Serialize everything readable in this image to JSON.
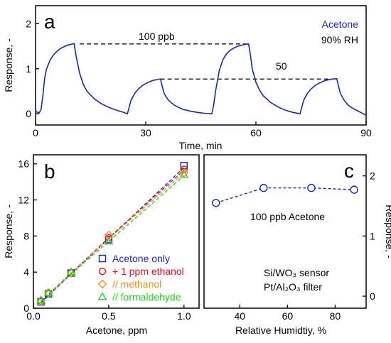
{
  "chart_data": [
    {
      "panel_label": "a",
      "type": "line",
      "xlabel": "Time, min",
      "ylabel": "Response, -",
      "xlim": [
        0,
        90
      ],
      "ylim": [
        -0.25,
        2.4
      ],
      "xticks": [
        "0",
        "30",
        "60",
        "90"
      ],
      "xtick_values": [
        0,
        30,
        60,
        90
      ],
      "yticks": [
        "0",
        "1",
        "2"
      ],
      "ytick_values": [
        0,
        1,
        2
      ],
      "annotations": [
        "Acetone",
        "90% RH",
        "100  ppb",
        "50"
      ],
      "reference_levels": [
        {
          "label": "100  ppb",
          "y": 1.55,
          "x_range": [
            12,
            58
          ]
        },
        {
          "label": "50",
          "y": 0.77,
          "x_range": [
            34,
            82
          ]
        }
      ],
      "series": [
        {
          "color": "#1a22d6",
          "x": [
            0,
            1,
            1.5,
            2,
            2.5,
            3,
            4,
            5,
            6,
            7,
            8,
            9,
            10,
            10.5,
            11,
            12,
            13,
            14,
            16,
            18,
            20,
            22,
            24,
            25,
            25.5,
            26,
            27,
            28,
            29,
            30,
            31,
            32,
            33,
            34,
            34.5,
            35,
            36,
            37,
            38,
            40,
            42,
            44,
            46,
            48,
            48.5,
            49,
            50,
            51,
            52,
            53,
            54,
            55,
            56,
            57,
            58,
            58.5,
            59,
            60,
            61,
            62,
            64,
            66,
            68,
            70,
            72,
            72.5,
            73,
            74,
            75,
            76,
            77,
            78,
            79,
            80,
            81,
            82,
            82.5,
            83,
            84,
            85,
            86,
            88,
            90
          ],
          "y": [
            0.05,
            0.02,
            0.1,
            0.4,
            0.8,
            1.0,
            1.2,
            1.32,
            1.4,
            1.46,
            1.5,
            1.53,
            1.55,
            1.56,
            1.3,
            0.9,
            0.65,
            0.5,
            0.33,
            0.22,
            0.14,
            0.08,
            0.03,
            0.0,
            0.15,
            0.3,
            0.45,
            0.55,
            0.62,
            0.67,
            0.71,
            0.74,
            0.76,
            0.77,
            0.6,
            0.45,
            0.32,
            0.24,
            0.18,
            0.1,
            0.06,
            0.03,
            0.01,
            0.0,
            0.2,
            0.5,
            0.95,
            1.2,
            1.33,
            1.41,
            1.46,
            1.5,
            1.52,
            1.54,
            1.55,
            1.3,
            1.0,
            0.7,
            0.52,
            0.4,
            0.25,
            0.15,
            0.08,
            0.03,
            0.0,
            0.15,
            0.3,
            0.45,
            0.55,
            0.62,
            0.67,
            0.71,
            0.74,
            0.76,
            0.77,
            0.78,
            0.6,
            0.45,
            0.3,
            0.2,
            0.14,
            0.05,
            -0.03
          ]
        }
      ]
    },
    {
      "panel_label": "b",
      "type": "scatter",
      "xlabel": "Acetone, ppm",
      "ylabel": "Response, -",
      "xlim": [
        0,
        1.1
      ],
      "ylim": [
        0,
        17
      ],
      "xticks": [
        "0.0",
        "0.5",
        "1.0"
      ],
      "xtick_values": [
        0,
        0.5,
        1.0
      ],
      "yticks": [
        "0",
        "4",
        "8",
        "12",
        "16"
      ],
      "ytick_values": [
        0,
        4,
        8,
        12,
        16
      ],
      "legend_position": "bottom-right",
      "series": [
        {
          "name": "Acetone only",
          "marker": "square",
          "color": "#1a22d6",
          "x": [
            0.05,
            0.1,
            0.25,
            0.5,
            1.0
          ],
          "y": [
            0.7,
            1.6,
            3.9,
            7.6,
            15.8
          ],
          "fit_y": [
            0.6,
            1.4,
            3.8,
            7.7,
            15.6
          ]
        },
        {
          "name": "+ 1 ppm ethanol",
          "marker": "circle",
          "color": "#e8111b",
          "x": [
            0.05,
            0.1,
            0.25,
            0.5,
            1.0
          ],
          "y": [
            0.8,
            1.7,
            3.9,
            7.8,
            15.4
          ],
          "fit_y": [
            0.7,
            1.5,
            3.9,
            7.8,
            15.3
          ]
        },
        {
          "name": "// methanol",
          "marker": "diamond",
          "color": "#f2921a",
          "x": [
            0.05,
            0.1,
            0.25,
            0.5,
            1.0
          ],
          "y": [
            0.8,
            1.7,
            3.9,
            8.1,
            15.0
          ],
          "fit_y": [
            0.8,
            1.6,
            3.9,
            7.7,
            15.0
          ]
        },
        {
          "name": "// formaldehyde",
          "marker": "triangle",
          "color": "#22d622",
          "x": [
            0.05,
            0.1,
            0.25,
            0.5,
            1.0
          ],
          "y": [
            0.9,
            1.7,
            4.0,
            7.4,
            14.8
          ],
          "fit_y": [
            0.8,
            1.5,
            3.8,
            7.4,
            14.7
          ]
        }
      ]
    },
    {
      "panel_label": "c",
      "type": "scatter",
      "xlabel": "Relative Humidtiy, %",
      "ylabel": "Response, -",
      "xlim": [
        25,
        93
      ],
      "ylim": [
        -0.2,
        2.35
      ],
      "xticks": [
        "40",
        "60",
        "80"
      ],
      "xtick_values": [
        40,
        60,
        80
      ],
      "yticks": [
        "0",
        "1",
        "2"
      ],
      "ytick_values": [
        0,
        1,
        2
      ],
      "y_axis_side": "right",
      "annotations": [
        "100  ppb Acetone",
        "Si/WO₃ sensor",
        "Pt/Al₂O₃ filter"
      ],
      "series": [
        {
          "marker": "circle",
          "color": "#1a22d6",
          "x": [
            30,
            50,
            70,
            88
          ],
          "y": [
            1.55,
            1.8,
            1.8,
            1.77
          ]
        }
      ]
    }
  ]
}
